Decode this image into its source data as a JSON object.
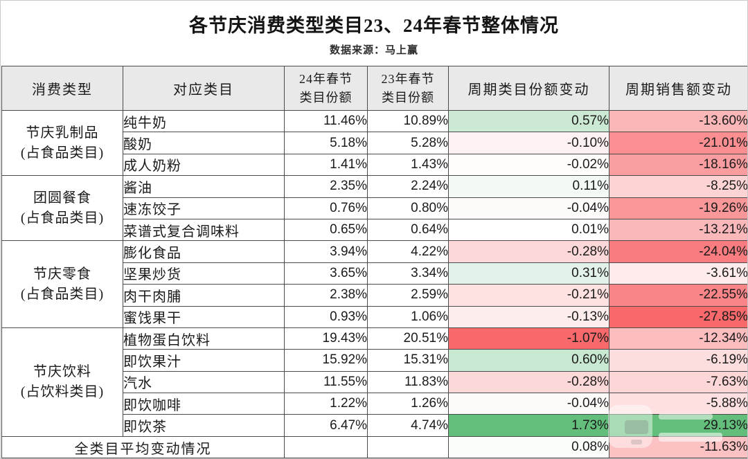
{
  "title": "各节庆消费类型类目23、24年春节整体情况",
  "subtitle": "数据来源：马上赢",
  "colors": {
    "header_bg": "#e9e9e9",
    "grid_border": "#4a4a4a",
    "scale_positive_max": "#63be7b",
    "scale_negative_max": "#f8696b",
    "scale_midpoint": "#ffffff"
  },
  "table": {
    "headers": [
      "消费类型",
      "对应类目",
      "24年春节\n类目份额",
      "23年春节\n类目份额",
      "周期类目份额变动",
      "周期销售额变动"
    ],
    "groups": [
      {
        "type": "节庆乳制品",
        "type_note": "(占食品类目)",
        "rows": [
          {
            "category": "纯牛奶",
            "share24": "11.46%",
            "share23": "10.89%",
            "share_change": "0.57%",
            "share_change_bg": "#cbe9d3",
            "sales_change": "-13.60%",
            "sales_change_bg": "#fbb6b8"
          },
          {
            "category": "酸奶",
            "share24": "5.18%",
            "share23": "5.28%",
            "share_change": "-0.10%",
            "share_change_bg": "#fef1f1",
            "sales_change": "-21.01%",
            "sales_change_bg": "#fa8e90"
          },
          {
            "category": "成人奶粉",
            "share24": "1.41%",
            "share23": "1.43%",
            "share_change": "-0.02%",
            "share_change_bg": "#fffcfc",
            "sales_change": "-18.16%",
            "sales_change_bg": "#fa9da0"
          }
        ]
      },
      {
        "type": "团圆餐食",
        "type_note": "(占食品类目)",
        "rows": [
          {
            "category": "酱油",
            "share24": "2.35%",
            "share23": "2.24%",
            "share_change": "0.11%",
            "share_change_bg": "#f3faf5",
            "sales_change": "-8.25%",
            "sales_change_bg": "#fdd3d4"
          },
          {
            "category": "速冻饺子",
            "share24": "0.76%",
            "share23": "0.80%",
            "share_change": "-0.04%",
            "share_change_bg": "#fefafa",
            "sales_change": "-19.26%",
            "sales_change_bg": "#fa9799"
          },
          {
            "category": "菜谱式复合调味料",
            "share24": "0.65%",
            "share23": "0.64%",
            "share_change": "0.01%",
            "share_change_bg": "#fefffe",
            "sales_change": "-13.21%",
            "sales_change_bg": "#fbb8ba"
          }
        ]
      },
      {
        "type": "节庆零食",
        "type_note": "(占食品类目)",
        "rows": [
          {
            "category": "膨化食品",
            "share24": "3.94%",
            "share23": "4.22%",
            "share_change": "-0.28%",
            "share_change_bg": "#fdd8d8",
            "sales_change": "-24.04%",
            "sales_change_bg": "#f97d80"
          },
          {
            "category": "坚果炒货",
            "share24": "3.65%",
            "share23": "3.34%",
            "share_change": "0.31%",
            "share_change_bg": "#e4f3e9",
            "sales_change": "-3.61%",
            "sales_change_bg": "#feebeb"
          },
          {
            "category": "肉干肉脯",
            "share24": "2.38%",
            "share23": "2.59%",
            "share_change": "-0.21%",
            "share_change_bg": "#fee2e2",
            "sales_change": "-22.55%",
            "sales_change_bg": "#f98588"
          },
          {
            "category": "蜜饯果干",
            "share24": "0.93%",
            "share23": "1.06%",
            "share_change": "-0.13%",
            "share_change_bg": "#feeded",
            "sales_change": "-27.85%",
            "sales_change_bg": "#f8696b"
          }
        ]
      },
      {
        "type": "节庆饮料",
        "type_note": "(占饮料类目)",
        "rows": [
          {
            "category": "植物蛋白饮料",
            "share24": "19.43%",
            "share23": "20.51%",
            "share_change": "-1.07%",
            "share_change_bg": "#f8696b",
            "sales_change": "-12.34%",
            "sales_change_bg": "#fcbdbf"
          },
          {
            "category": "即饮果汁",
            "share24": "15.92%",
            "share23": "15.31%",
            "share_change": "0.60%",
            "share_change_bg": "#c9e8d2",
            "sales_change": "-6.19%",
            "sales_change_bg": "#fddedf"
          },
          {
            "category": "汽水",
            "share24": "11.55%",
            "share23": "11.83%",
            "share_change": "-0.28%",
            "share_change_bg": "#fdd8d8",
            "sales_change": "-7.63%",
            "sales_change_bg": "#fdd6d7"
          },
          {
            "category": "即饮咖啡",
            "share24": "1.22%",
            "share23": "1.26%",
            "share_change": "-0.04%",
            "share_change_bg": "#fefafa",
            "sales_change": "-5.88%",
            "sales_change_bg": "#fee0e1"
          },
          {
            "category": "即饮茶",
            "share24": "6.47%",
            "share23": "4.74%",
            "share_change": "1.73%",
            "share_change_bg": "#63be7b",
            "sales_change": "29.13%",
            "sales_change_bg": "#63be7b"
          }
        ]
      }
    ],
    "summary": {
      "label": "全类目平均变动情况",
      "share24": "",
      "share23": "",
      "share_change": "0.08%",
      "share_change_bg": "#fbfdfb",
      "sales_change": "-11.63%",
      "sales_change_bg": "#fcc1c3"
    }
  },
  "chart_data": {
    "type": "table",
    "title": "各节庆消费类型类目23、24年春节整体情况",
    "subtitle": "数据来源：马上赢",
    "units": "%",
    "columns": [
      "消费类型",
      "对应类目",
      "24年春节类目份额",
      "23年春节类目份额",
      "周期类目份额变动",
      "周期销售额变动"
    ],
    "rows": [
      [
        "节庆乳制品(占食品类目)",
        "纯牛奶",
        11.46,
        10.89,
        0.57,
        -13.6
      ],
      [
        "节庆乳制品(占食品类目)",
        "酸奶",
        5.18,
        5.28,
        -0.1,
        -21.01
      ],
      [
        "节庆乳制品(占食品类目)",
        "成人奶粉",
        1.41,
        1.43,
        -0.02,
        -18.16
      ],
      [
        "团圆餐食(占食品类目)",
        "酱油",
        2.35,
        2.24,
        0.11,
        -8.25
      ],
      [
        "团圆餐食(占食品类目)",
        "速冻饺子",
        0.76,
        0.8,
        -0.04,
        -19.26
      ],
      [
        "团圆餐食(占食品类目)",
        "菜谱式复合调味料",
        0.65,
        0.64,
        0.01,
        -13.21
      ],
      [
        "节庆零食(占食品类目)",
        "膨化食品",
        3.94,
        4.22,
        -0.28,
        -24.04
      ],
      [
        "节庆零食(占食品类目)",
        "坚果炒货",
        3.65,
        3.34,
        0.31,
        -3.61
      ],
      [
        "节庆零食(占食品类目)",
        "肉干肉脯",
        2.38,
        2.59,
        -0.21,
        -22.55
      ],
      [
        "节庆零食(占食品类目)",
        "蜜饯果干",
        0.93,
        1.06,
        -0.13,
        -27.85
      ],
      [
        "节庆饮料(占饮料类目)",
        "植物蛋白饮料",
        19.43,
        20.51,
        -1.07,
        -12.34
      ],
      [
        "节庆饮料(占饮料类目)",
        "即饮果汁",
        15.92,
        15.31,
        0.6,
        -6.19
      ],
      [
        "节庆饮料(占饮料类目)",
        "汽水",
        11.55,
        11.83,
        -0.28,
        -7.63
      ],
      [
        "节庆饮料(占饮料类目)",
        "即饮咖啡",
        1.22,
        1.26,
        -0.04,
        -5.88
      ],
      [
        "节庆饮料(占饮料类目)",
        "即饮茶",
        6.47,
        4.74,
        1.73,
        29.13
      ],
      [
        "全类目平均变动情况",
        "",
        null,
        null,
        0.08,
        -11.63
      ]
    ],
    "conditional_formatting": "3-color scale per change column: red #f8696b (min) → white (0) → green #63be7b (max)"
  }
}
